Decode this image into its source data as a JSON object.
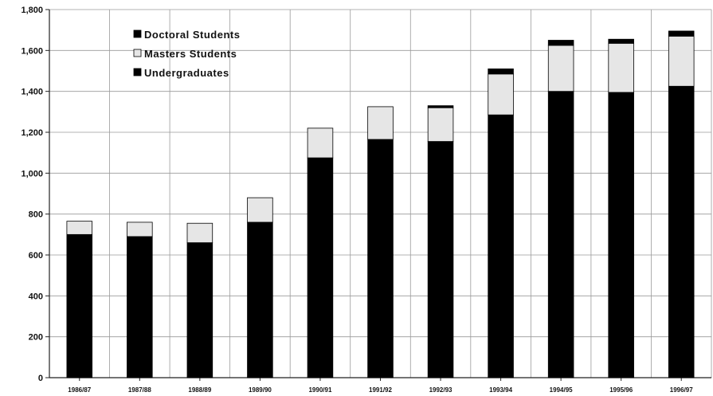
{
  "chart_data": {
    "type": "bar",
    "stacked": true,
    "categories": [
      "1986/87",
      "1987/88",
      "1988/89",
      "1989/90",
      "1990/91",
      "1991/92",
      "1992/93",
      "1993/94",
      "1994/95",
      "1995/96",
      "1996/97"
    ],
    "series": [
      {
        "name": "Undergraduates",
        "color": "#000000",
        "values": [
          700,
          690,
          660,
          760,
          1075,
          1165,
          1155,
          1285,
          1400,
          1395,
          1425
        ]
      },
      {
        "name": "Masters Students",
        "color": "#e6e6e6",
        "values": [
          65,
          70,
          95,
          120,
          145,
          160,
          165,
          200,
          225,
          240,
          245
        ]
      },
      {
        "name": "Doctoral Students",
        "color": "#000000",
        "values": [
          0,
          0,
          0,
          0,
          0,
          0,
          10,
          25,
          25,
          20,
          25
        ]
      }
    ],
    "legend": {
      "placement": "top-left",
      "entries": [
        {
          "name": "Doctoral Students",
          "color": "#000000"
        },
        {
          "name": "Masters Students",
          "color": "#e6e6e6"
        },
        {
          "name": "Undergraduates",
          "color": "#000000"
        }
      ]
    },
    "ylim": [
      0,
      1800
    ],
    "yticks": [
      "0",
      "200",
      "400",
      "600",
      "800",
      "1,000",
      "1,200",
      "1,400",
      "1,600",
      "1,800"
    ],
    "grid": true
  }
}
